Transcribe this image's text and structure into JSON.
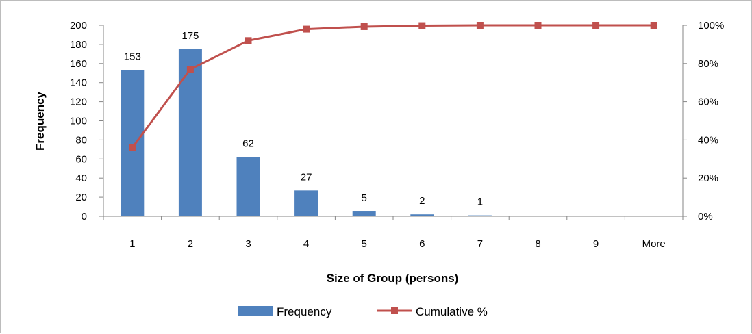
{
  "chart_data": {
    "type": "bar",
    "categories": [
      "1",
      "2",
      "3",
      "4",
      "5",
      "6",
      "7",
      "8",
      "9",
      "More"
    ],
    "series": [
      {
        "name": "Frequency",
        "kind": "bar",
        "axis": "left",
        "color": "#4F81BD",
        "values": [
          153,
          175,
          62,
          27,
          5,
          2,
          1,
          0,
          0,
          0
        ],
        "data_labels": [
          "153",
          "175",
          "62",
          "27",
          "5",
          "2",
          "1",
          "",
          "",
          ""
        ]
      },
      {
        "name": "Cumulative %",
        "kind": "line",
        "axis": "right",
        "color": "#C0504D",
        "marker": "square",
        "values": [
          36,
          77,
          92,
          98,
          99.3,
          99.8,
          100,
          100,
          100,
          100
        ]
      }
    ],
    "xlabel": "Size of Group (persons)",
    "ylabel": "Frequency",
    "ylim": [
      0,
      200
    ],
    "y_ticks": [
      "0",
      "20",
      "40",
      "60",
      "80",
      "100",
      "120",
      "140",
      "160",
      "180",
      "200"
    ],
    "y2lim": [
      0,
      100
    ],
    "y2_ticks": [
      "0%",
      "20%",
      "40%",
      "60%",
      "80%",
      "100%"
    ],
    "grid": false,
    "legend_position": "bottom"
  }
}
